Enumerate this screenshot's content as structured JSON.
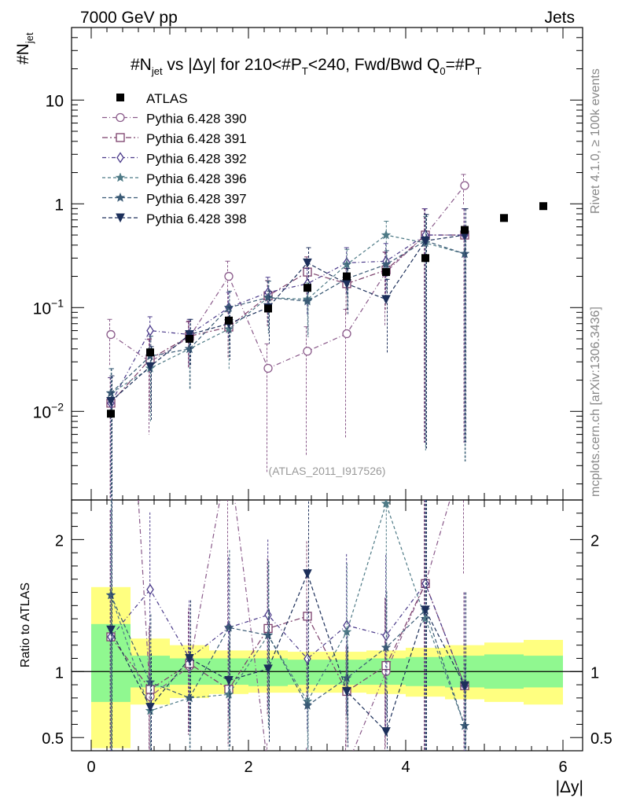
{
  "header": {
    "left": "7000 GeV pp",
    "right": "Jets"
  },
  "side_labels": {
    "top": "Rivet 4.1.0, ≥ 100k events",
    "bottom": "mcplots.cern.ch [arXiv:1306.3436]"
  },
  "chart_data": {
    "type": "scatter",
    "title": "#N_jet vs |Δy| for 210<#P_T<240, Fwd/Bwd Q_0=#P_T",
    "title_parts": {
      "a": "#N",
      "a_sub": "jet",
      "b": " vs |Δy| for 210<#P",
      "b_sub": "T",
      "c": "<240, Fwd/Bwd Q",
      "c_sub": "0",
      "d": "=#P",
      "d_sub": "T"
    },
    "ylabel_main": {
      "text": "#N",
      "sub": "jet"
    },
    "ylabel_ratio": "Ratio to ATLAS",
    "xlabel": "|Δy|",
    "watermark": "(ATLAS_2011_I917526)",
    "main_ylim": [
      0.0014,
      50
    ],
    "main_yscale": "log",
    "main_yticks": [
      {
        "value": 0.01,
        "base": "10",
        "exp": "−2"
      },
      {
        "value": 0.1,
        "base": "10",
        "exp": "−1"
      },
      {
        "value": 1,
        "label": "1"
      },
      {
        "value": 10,
        "label": "10"
      }
    ],
    "ratio_ylim": [
      0.4,
      2.3
    ],
    "ratio_yticks": [
      {
        "value": 0.5,
        "label": "0.5"
      },
      {
        "value": 1,
        "label": "1"
      },
      {
        "value": 2,
        "label": "2"
      }
    ],
    "xlim": [
      -0.25,
      6.25
    ],
    "xticks": [
      {
        "value": 0,
        "label": "0"
      },
      {
        "value": 2,
        "label": "2"
      },
      {
        "value": 4,
        "label": "4"
      },
      {
        "value": 6,
        "label": "6"
      }
    ],
    "x": [
      0.25,
      0.75,
      1.25,
      1.75,
      2.25,
      2.75,
      3.25,
      3.75,
      4.25,
      4.75,
      5.25,
      5.75
    ],
    "atlas": {
      "name": "ATLAS",
      "values": [
        0.0095,
        0.037,
        0.05,
        0.075,
        0.098,
        0.155,
        0.2,
        0.22,
        0.3,
        0.56,
        0.73,
        0.95
      ]
    },
    "band_edges": [
      0,
      0.5,
      1,
      1.5,
      2,
      2.5,
      3,
      3.5,
      4,
      4.5,
      5,
      5.5,
      6
    ],
    "band_stat": [
      [
        0.77,
        1.36
      ],
      [
        0.88,
        1.12
      ],
      [
        0.9,
        1.1
      ],
      [
        0.9,
        1.1
      ],
      [
        0.89,
        1.1
      ],
      [
        0.9,
        1.09
      ],
      [
        0.9,
        1.09
      ],
      [
        0.9,
        1.1
      ],
      [
        0.89,
        1.11
      ],
      [
        0.88,
        1.12
      ],
      [
        0.87,
        1.13
      ],
      [
        0.88,
        1.12
      ]
    ],
    "band_total": [
      [
        0.42,
        1.64
      ],
      [
        0.75,
        1.25
      ],
      [
        0.8,
        1.2
      ],
      [
        0.83,
        1.16
      ],
      [
        0.84,
        1.16
      ],
      [
        0.84,
        1.15
      ],
      [
        0.84,
        1.15
      ],
      [
        0.83,
        1.16
      ],
      [
        0.81,
        1.18
      ],
      [
        0.79,
        1.2
      ],
      [
        0.77,
        1.22
      ],
      [
        0.75,
        1.24
      ]
    ],
    "series": [
      {
        "name": "Pythia 6.428 390",
        "color": "#8a5a8a",
        "marker": "circle",
        "dash": "6,3,1,3",
        "values": [
          0.055,
          0.03,
          0.052,
          0.2,
          0.026,
          0.038,
          0.056,
          0.22,
          0.5,
          1.5
        ],
        "err": [
          0.5,
          0.8,
          0.5,
          0.5,
          0.9,
          0.9,
          0.9,
          0.7,
          0.99,
          0.35
        ]
      },
      {
        "name": "Pythia 6.428 391",
        "color": "#7b3f6b",
        "marker": "square",
        "dash": "7,3,2,3",
        "values": [
          0.012,
          0.032,
          0.053,
          0.065,
          0.13,
          0.22,
          0.17,
          0.23,
          0.5,
          0.5
        ],
        "err": [
          0.95,
          0.7,
          0.5,
          0.5,
          0.5,
          0.5,
          0.5,
          0.6,
          0.99,
          0.99
        ]
      },
      {
        "name": "Pythia 6.428 392",
        "color": "#4b3a8a",
        "marker": "diamond",
        "dash": "5,3,1,3",
        "values": [
          0.012,
          0.06,
          0.055,
          0.1,
          0.14,
          0.17,
          0.27,
          0.28,
          0.5,
          0.5
        ],
        "err": [
          0.95,
          0.45,
          0.5,
          0.5,
          0.5,
          0.5,
          0.5,
          0.6,
          0.99,
          0.99
        ]
      },
      {
        "name": "Pythia 6.428 396",
        "color": "#4e7a86",
        "marker": "star",
        "dash": "4,3",
        "values": [
          0.015,
          0.026,
          0.04,
          0.062,
          0.125,
          0.12,
          0.26,
          0.5,
          0.42,
          0.33
        ],
        "err": [
          0.9,
          0.7,
          0.6,
          0.6,
          0.55,
          0.55,
          0.5,
          0.45,
          0.99,
          0.99
        ]
      },
      {
        "name": "Pythia 6.428 397",
        "color": "#3a5a75",
        "marker": "star",
        "dash": "5,3",
        "values": [
          0.015,
          0.034,
          0.04,
          0.1,
          0.125,
          0.115,
          0.19,
          0.26,
          0.44,
          0.33
        ],
        "err": [
          0.9,
          0.7,
          0.6,
          0.55,
          0.55,
          0.55,
          0.5,
          0.45,
          0.99,
          0.99
        ]
      },
      {
        "name": "Pythia 6.428 398",
        "color": "#1c2f5a",
        "marker": "triangle-down",
        "dash": "5,3",
        "values": [
          0.0125,
          0.027,
          0.055,
          0.07,
          0.1,
          0.27,
          0.17,
          0.12,
          0.44,
          0.5
        ],
        "err": [
          0.95,
          0.7,
          0.5,
          0.55,
          0.55,
          0.5,
          0.5,
          0.7,
          0.99,
          0.99
        ]
      }
    ]
  }
}
